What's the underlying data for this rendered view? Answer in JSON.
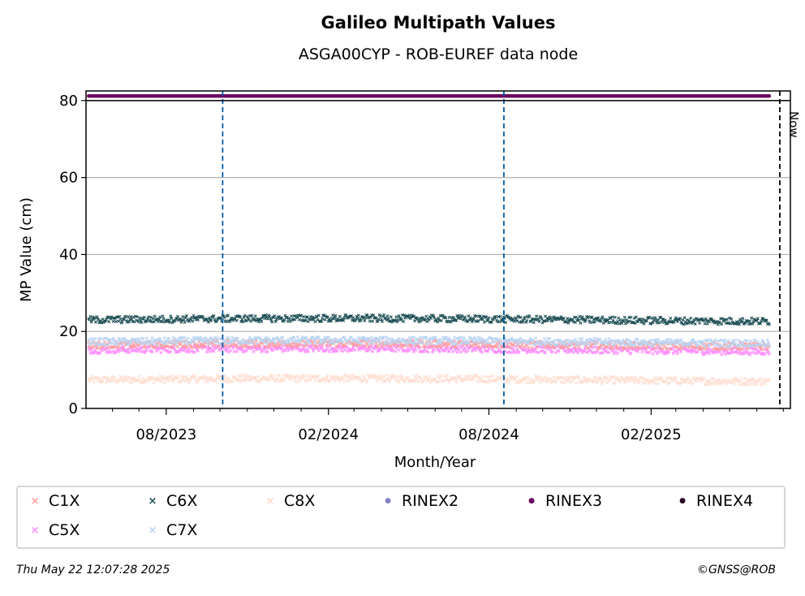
{
  "chart_data": {
    "type": "scatter",
    "title": "Galileo Multipath Values",
    "subtitle": "ASGA00CYP - ROB-EUREF data node",
    "xlabel": "Month/Year",
    "ylabel": "MP Value (cm)",
    "ylim": [
      0,
      82.5
    ],
    "xlim": [
      "2023-05-02",
      "2025-07-09"
    ],
    "yticks": [
      0,
      20,
      40,
      60,
      80
    ],
    "xticks": [
      {
        "date": "2023-08-01",
        "label": "08/2023"
      },
      {
        "date": "2024-02-01",
        "label": "02/2024"
      },
      {
        "date": "2024-08-01",
        "label": "08/2024"
      },
      {
        "date": "2025-02-01",
        "label": "02/2025"
      }
    ],
    "minor_xticks": [
      "2023-05-01",
      "2023-06-01",
      "2023-07-01",
      "2023-09-01",
      "2023-10-01",
      "2023-11-01",
      "2023-12-01",
      "2024-01-01",
      "2024-03-01",
      "2024-04-01",
      "2024-05-01",
      "2024-06-01",
      "2024-07-01",
      "2024-09-01",
      "2024-10-01",
      "2024-11-01",
      "2024-12-01",
      "2025-01-01",
      "2025-03-01",
      "2025-04-01",
      "2025-05-01",
      "2025-06-01",
      "2025-07-01"
    ],
    "grid": "y",
    "date_range": [
      "2023-05-05",
      "2025-06-15"
    ],
    "series": [
      {
        "name": "C1X",
        "color": "#ff9f9f",
        "marker": "x",
        "mean": 16.5
      },
      {
        "name": "C5X",
        "color": "#ff8cff",
        "marker": "x",
        "mean": 15.2
      },
      {
        "name": "C6X",
        "color": "#1e4f55",
        "marker": "x",
        "mean": 23.0
      },
      {
        "name": "C7X",
        "color": "#b9d3f2",
        "marker": "x",
        "mean": 17.3
      },
      {
        "name": "C8X",
        "color": "#ffdfd2",
        "marker": "x",
        "mean": 7.4
      },
      {
        "name": "RINEX2",
        "color": "#8583c8",
        "marker": "dot"
      },
      {
        "name": "RINEX3",
        "color": "#6b0060",
        "marker": "dot",
        "value": 81.2
      },
      {
        "name": "RINEX4",
        "color": "#22001e",
        "marker": "dot"
      }
    ],
    "vlines": [
      {
        "date": "2023-10-04",
        "color": "#005aa8",
        "style": "dashed"
      },
      {
        "date": "2024-08-18",
        "color": "#005aa8",
        "style": "dashed"
      },
      {
        "date": "2025-06-27",
        "color": "#000000",
        "style": "dashed",
        "label": "Now"
      }
    ]
  },
  "legend": {
    "items": [
      {
        "label": "C1X",
        "color": "#ff9f9f",
        "marker": "×"
      },
      {
        "label": "C6X",
        "color": "#1e4f55",
        "marker": "×"
      },
      {
        "label": "C8X",
        "color": "#ffd9cc",
        "marker": "×"
      },
      {
        "label": "RINEX2",
        "color": "#8583c8",
        "marker": "●"
      },
      {
        "label": "RINEX3",
        "color": "#6b0060",
        "marker": "●"
      },
      {
        "label": "RINEX4",
        "color": "#22001e",
        "marker": "●"
      },
      {
        "label": "C5X",
        "color": "#ff8cff",
        "marker": "×"
      },
      {
        "label": "C7X",
        "color": "#b9d3f2",
        "marker": "×"
      }
    ]
  },
  "footer": {
    "timestamp": "Thu May 22 12:07:28 2025",
    "credit": "©GNSS@ROB"
  }
}
